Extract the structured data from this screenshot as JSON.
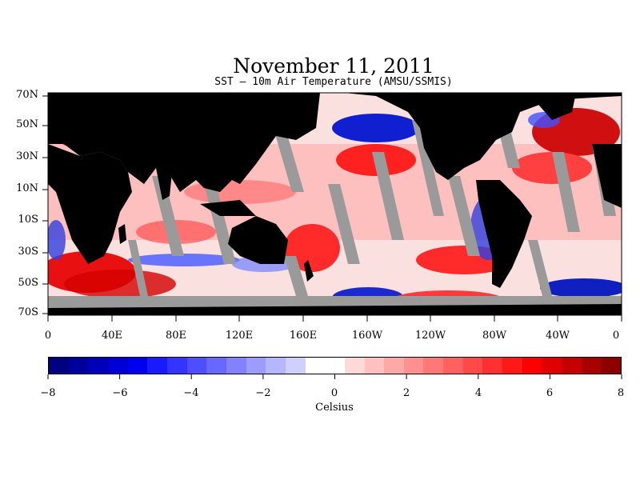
{
  "title": "November 11, 2011",
  "subtitle": "SST – 10m Air Temperature (AMSU/SSMIS)",
  "map": {
    "lat_labels": [
      "70N",
      "50N",
      "30N",
      "10N",
      "10S",
      "30S",
      "50S",
      "70S"
    ],
    "lon_labels": [
      "0",
      "40E",
      "80E",
      "120E",
      "160E",
      "160W",
      "120W",
      "80W",
      "40W",
      "0"
    ],
    "colors": {
      "land": "#000000",
      "no_data": "#9a9a9a",
      "warm": "#ff1a1a",
      "cool": "#2030e0"
    }
  },
  "colorbar": {
    "tick_labels": [
      "−8",
      "−6",
      "−4",
      "−2",
      "0",
      "2",
      "4",
      "6",
      "8"
    ],
    "unit": "Celsius",
    "range": [
      -8,
      8
    ],
    "colors": [
      "#000080",
      "#00009c",
      "#0000b8",
      "#0000d4",
      "#0000ef",
      "#1a1aff",
      "#3434ff",
      "#4e4eff",
      "#6868ff",
      "#8282ff",
      "#9c9cff",
      "#b6b6ff",
      "#d0d0ff",
      "#ffffff",
      "#ffffff",
      "#ffd8d8",
      "#ffc0c0",
      "#ffa8a8",
      "#ff9090",
      "#ff7878",
      "#ff6060",
      "#ff4848",
      "#ff3030",
      "#ff1818",
      "#ff0000",
      "#e00000",
      "#c40000",
      "#a80000",
      "#8c0000"
    ]
  }
}
